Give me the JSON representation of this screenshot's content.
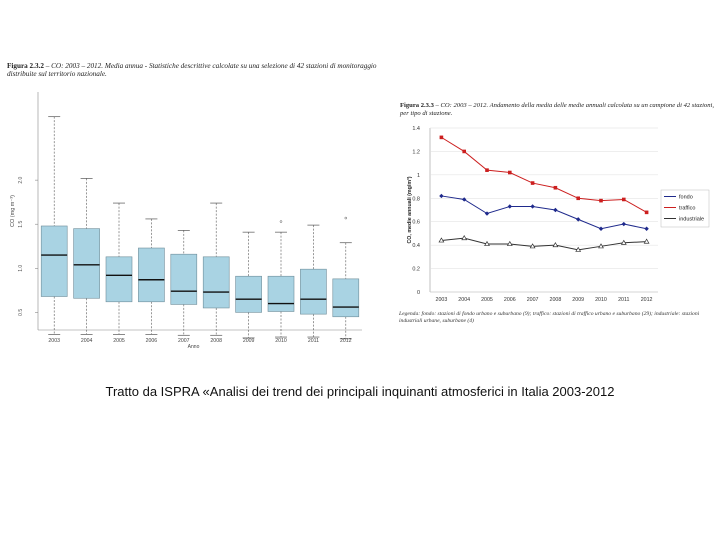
{
  "chart_data": [
    {
      "type": "box",
      "title_prefix": "Figura 2.3.2",
      "title": "– CO: 2003 – 2012. Media annua - Statistiche descrittive calcolate su una selezione di 42 stazioni di monitoraggio distribuite sul territorio nazionale.",
      "xlabel": "Anno",
      "ylabel": "CO (mg m⁻³)",
      "ylim": [
        0.3,
        3.0
      ],
      "yticks": [
        "0.5",
        "1.0",
        "1.5",
        "2.0"
      ],
      "ytick_values": [
        0.5,
        1.0,
        1.5,
        2.0
      ],
      "categories": [
        "2003",
        "2004",
        "2005",
        "2006",
        "2007",
        "2008",
        "2009",
        "2010",
        "2011",
        "2012"
      ],
      "boxes": [
        {
          "year": "2003",
          "min": 0.25,
          "q1": 0.68,
          "median": 1.15,
          "q3": 1.48,
          "max": 2.72
        },
        {
          "year": "2004",
          "min": 0.25,
          "q1": 0.66,
          "median": 1.04,
          "q3": 1.45,
          "max": 2.02
        },
        {
          "year": "2005",
          "min": 0.25,
          "q1": 0.62,
          "median": 0.92,
          "q3": 1.13,
          "max": 1.74
        },
        {
          "year": "2006",
          "min": 0.25,
          "q1": 0.62,
          "median": 0.87,
          "q3": 1.23,
          "max": 1.56
        },
        {
          "year": "2007",
          "min": 0.24,
          "q1": 0.59,
          "median": 0.74,
          "q3": 1.16,
          "max": 1.43
        },
        {
          "year": "2008",
          "min": 0.24,
          "q1": 0.55,
          "median": 0.73,
          "q3": 1.13,
          "max": 1.74
        },
        {
          "year": "2009",
          "min": 0.21,
          "q1": 0.5,
          "median": 0.65,
          "q3": 0.91,
          "max": 1.41
        },
        {
          "year": "2010",
          "min": 0.22,
          "q1": 0.51,
          "median": 0.6,
          "q3": 0.91,
          "max": 1.41
        },
        {
          "year": "2011",
          "min": 0.22,
          "q1": 0.48,
          "median": 0.65,
          "q3": 0.99,
          "max": 1.49
        },
        {
          "year": "2012",
          "min": 0.2,
          "q1": 0.45,
          "median": 0.56,
          "q3": 0.88,
          "max": 1.29
        }
      ],
      "outliers": [
        {
          "year": "2010",
          "value": 1.53
        },
        {
          "year": "2012",
          "value": 1.57
        }
      ],
      "box_color": "#a9d3e3",
      "median_color": "#111111"
    },
    {
      "type": "line",
      "title_prefix": "Figura 2.3.3",
      "title": "– CO: 2003 – 2012. Andamento della media delle medie annuali calcolata su un campione di 42 stazioni, per tipo di stazione.",
      "ylabel": "CO, medie annuali (mg/m³)",
      "ylim": [
        0,
        1.4
      ],
      "yticks": [
        "0",
        "0.2",
        "0.4",
        "0.6",
        "0.8",
        "1",
        "1.2",
        "1.4"
      ],
      "ytick_values": [
        0,
        0.2,
        0.4,
        0.6,
        0.8,
        1.0,
        1.2,
        1.4
      ],
      "x": [
        "2003",
        "2004",
        "2005",
        "2006",
        "2007",
        "2008",
        "2009",
        "2010",
        "2011",
        "2012"
      ],
      "series": [
        {
          "name": "fondo",
          "color": "#1f2a8c",
          "marker": "diamond",
          "values": [
            0.82,
            0.79,
            0.67,
            0.73,
            0.73,
            0.7,
            0.62,
            0.54,
            0.58,
            0.54
          ]
        },
        {
          "name": "traffico",
          "color": "#cc1f1f",
          "marker": "square",
          "values": [
            1.32,
            1.2,
            1.04,
            1.02,
            0.93,
            0.89,
            0.8,
            0.78,
            0.79,
            0.68
          ]
        },
        {
          "name": "industriale",
          "color": "#333333",
          "marker": "triangle",
          "values": [
            0.44,
            0.46,
            0.41,
            0.41,
            0.39,
            0.4,
            0.36,
            0.39,
            0.42,
            0.43
          ]
        }
      ],
      "legend": "right",
      "caption": "Legenda: fondo: stazioni di fondo urbano e suburbano (9); traffico: stazioni di traffico urbano e suburbano (29); industriale: stazioni industriali urbane, suburbane (4)"
    }
  ],
  "caption": "Tratto da ISPRA «Analisi dei trend dei principali inquinanti atmosferici in Italia 2003-2012"
}
